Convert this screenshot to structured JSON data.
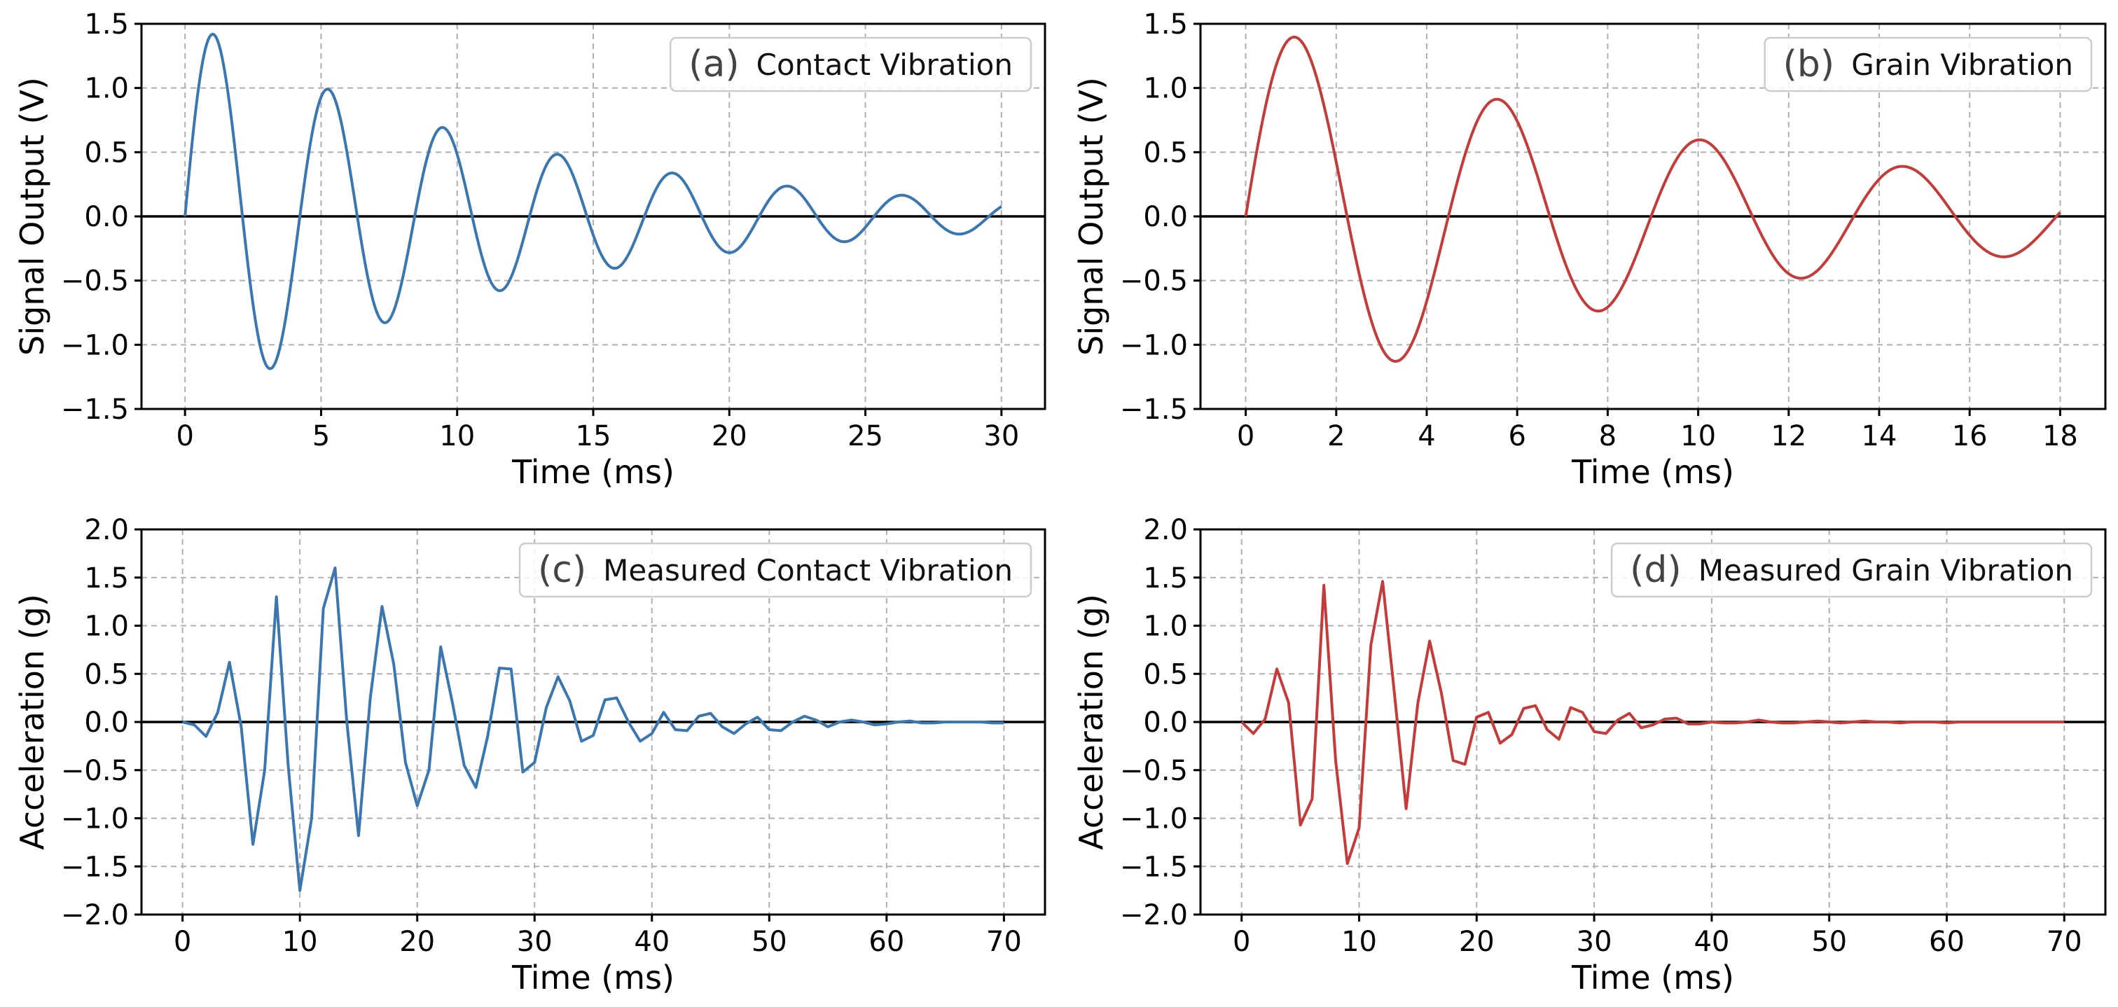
{
  "chart_data": [
    {
      "panel": "a",
      "type": "line",
      "legend_tag": "(a)",
      "legend_text": "Contact Vibration",
      "legend_position": "top-right",
      "xlabel": "Time (ms)",
      "ylabel": "Signal Output (V)",
      "xlim": [
        -1.6,
        31.6
      ],
      "ylim": [
        -1.5,
        1.5
      ],
      "xticks": [
        0,
        5,
        10,
        15,
        20,
        25,
        30
      ],
      "yticks": [
        -1.5,
        -1.0,
        -0.5,
        0.0,
        0.5,
        1.0,
        1.5
      ],
      "grid": true,
      "zero_line": true,
      "color": "#3a76af",
      "signal": {
        "model": "damped_sine",
        "amplitude": 1.55,
        "period_ms": 4.22,
        "decay_per_ms": 0.085,
        "duration_ms": 30
      }
    },
    {
      "panel": "b",
      "type": "line",
      "legend_tag": "(b)",
      "legend_text": "Grain Vibration",
      "legend_position": "top-right",
      "xlabel": "Time (ms)",
      "ylabel": "Signal Output (V)",
      "xlim": [
        -1.0,
        19.0
      ],
      "ylim": [
        -1.5,
        1.5
      ],
      "xticks": [
        0,
        2,
        4,
        6,
        8,
        10,
        12,
        14,
        16,
        18
      ],
      "yticks": [
        -1.5,
        -1.0,
        -0.5,
        0.0,
        0.5,
        1.0,
        1.5
      ],
      "grid": true,
      "zero_line": true,
      "color": "#c43c39",
      "signal": {
        "model": "damped_sine",
        "amplitude": 1.55,
        "period_ms": 4.48,
        "decay_per_ms": 0.095,
        "duration_ms": 18
      }
    },
    {
      "panel": "c",
      "type": "line",
      "legend_tag": "(c)",
      "legend_text": "Measured Contact Vibration",
      "legend_position": "top-right",
      "xlabel": "Time (ms)",
      "ylabel": "Acceleration (g)",
      "xlim": [
        -3.5,
        73.5
      ],
      "ylim": [
        -2.0,
        2.0
      ],
      "xticks": [
        0,
        10,
        20,
        30,
        40,
        50,
        60,
        70
      ],
      "yticks": [
        -2.0,
        -1.5,
        -1.0,
        -0.5,
        0.0,
        0.5,
        1.0,
        1.5,
        2.0
      ],
      "grid": true,
      "zero_line": true,
      "color": "#3a76af",
      "x": [
        0,
        1,
        2,
        3,
        4,
        5,
        6,
        7,
        8,
        9,
        10,
        11,
        12,
        13,
        14,
        15,
        16,
        17,
        18,
        19,
        20,
        21,
        22,
        23,
        24,
        25,
        26,
        27,
        28,
        29,
        30,
        31,
        32,
        33,
        34,
        35,
        36,
        37,
        38,
        39,
        40,
        41,
        42,
        43,
        44,
        45,
        46,
        47,
        48,
        49,
        50,
        51,
        52,
        53,
        54,
        55,
        56,
        57,
        58,
        59,
        60,
        61,
        62,
        63,
        64,
        65,
        66,
        67,
        68,
        69,
        70
      ],
      "y": [
        0.0,
        -0.03,
        -0.15,
        0.1,
        0.62,
        -0.05,
        -1.27,
        -0.5,
        1.3,
        -0.45,
        -1.75,
        -1.0,
        1.18,
        1.6,
        0.0,
        -1.18,
        0.25,
        1.2,
        0.6,
        -0.42,
        -0.87,
        -0.5,
        0.78,
        0.2,
        -0.45,
        -0.68,
        -0.15,
        0.56,
        0.55,
        -0.52,
        -0.42,
        0.15,
        0.47,
        0.22,
        -0.2,
        -0.14,
        0.23,
        0.25,
        0.0,
        -0.2,
        -0.12,
        0.1,
        -0.08,
        -0.09,
        0.06,
        0.09,
        -0.05,
        -0.12,
        -0.02,
        0.05,
        -0.08,
        -0.09,
        0.0,
        0.06,
        0.02,
        -0.05,
        0.0,
        0.02,
        0.0,
        -0.03,
        -0.02,
        0.0,
        0.01,
        -0.01,
        -0.01,
        0.0,
        0.0,
        0.0,
        0.0,
        -0.01,
        -0.01
      ]
    },
    {
      "panel": "d",
      "type": "line",
      "legend_tag": "(d)",
      "legend_text": "Measured Grain Vibration",
      "legend_position": "top-right",
      "xlabel": "Time (ms)",
      "ylabel": "Acceleration (g)",
      "xlim": [
        -3.5,
        73.5
      ],
      "ylim": [
        -2.0,
        2.0
      ],
      "xticks": [
        0,
        10,
        20,
        30,
        40,
        50,
        60,
        70
      ],
      "yticks": [
        -2.0,
        -1.5,
        -1.0,
        -0.5,
        0.0,
        0.5,
        1.0,
        1.5,
        2.0
      ],
      "grid": true,
      "zero_line": true,
      "color": "#c43c39",
      "x": [
        0,
        1,
        2,
        3,
        4,
        5,
        6,
        7,
        8,
        9,
        10,
        11,
        12,
        13,
        14,
        15,
        16,
        17,
        18,
        19,
        20,
        21,
        22,
        23,
        24,
        25,
        26,
        27,
        28,
        29,
        30,
        31,
        32,
        33,
        34,
        35,
        36,
        37,
        38,
        39,
        40,
        41,
        42,
        43,
        44,
        45,
        46,
        47,
        48,
        49,
        50,
        51,
        52,
        53,
        54,
        55,
        56,
        57,
        58,
        59,
        60,
        61,
        62,
        63,
        64,
        65,
        66,
        67,
        68,
        69,
        70
      ],
      "y": [
        0.0,
        -0.12,
        0.03,
        0.55,
        0.2,
        -1.07,
        -0.8,
        1.42,
        -0.4,
        -1.47,
        -1.1,
        0.8,
        1.46,
        0.3,
        -0.9,
        0.2,
        0.84,
        0.3,
        -0.4,
        -0.44,
        0.05,
        0.1,
        -0.22,
        -0.13,
        0.14,
        0.17,
        -0.08,
        -0.18,
        0.15,
        0.1,
        -0.1,
        -0.12,
        0.02,
        0.09,
        -0.06,
        -0.03,
        0.03,
        0.04,
        -0.02,
        -0.02,
        0.0,
        -0.01,
        -0.01,
        0.0,
        0.02,
        0.0,
        -0.01,
        -0.01,
        0.0,
        0.01,
        0.0,
        -0.01,
        0.0,
        0.01,
        0.0,
        0.0,
        -0.01,
        0.0,
        0.0,
        0.0,
        -0.01,
        0.0,
        0.0,
        0.0,
        0.0,
        0.0,
        0.0,
        0.0,
        0.0,
        0.0,
        0.0
      ]
    }
  ]
}
